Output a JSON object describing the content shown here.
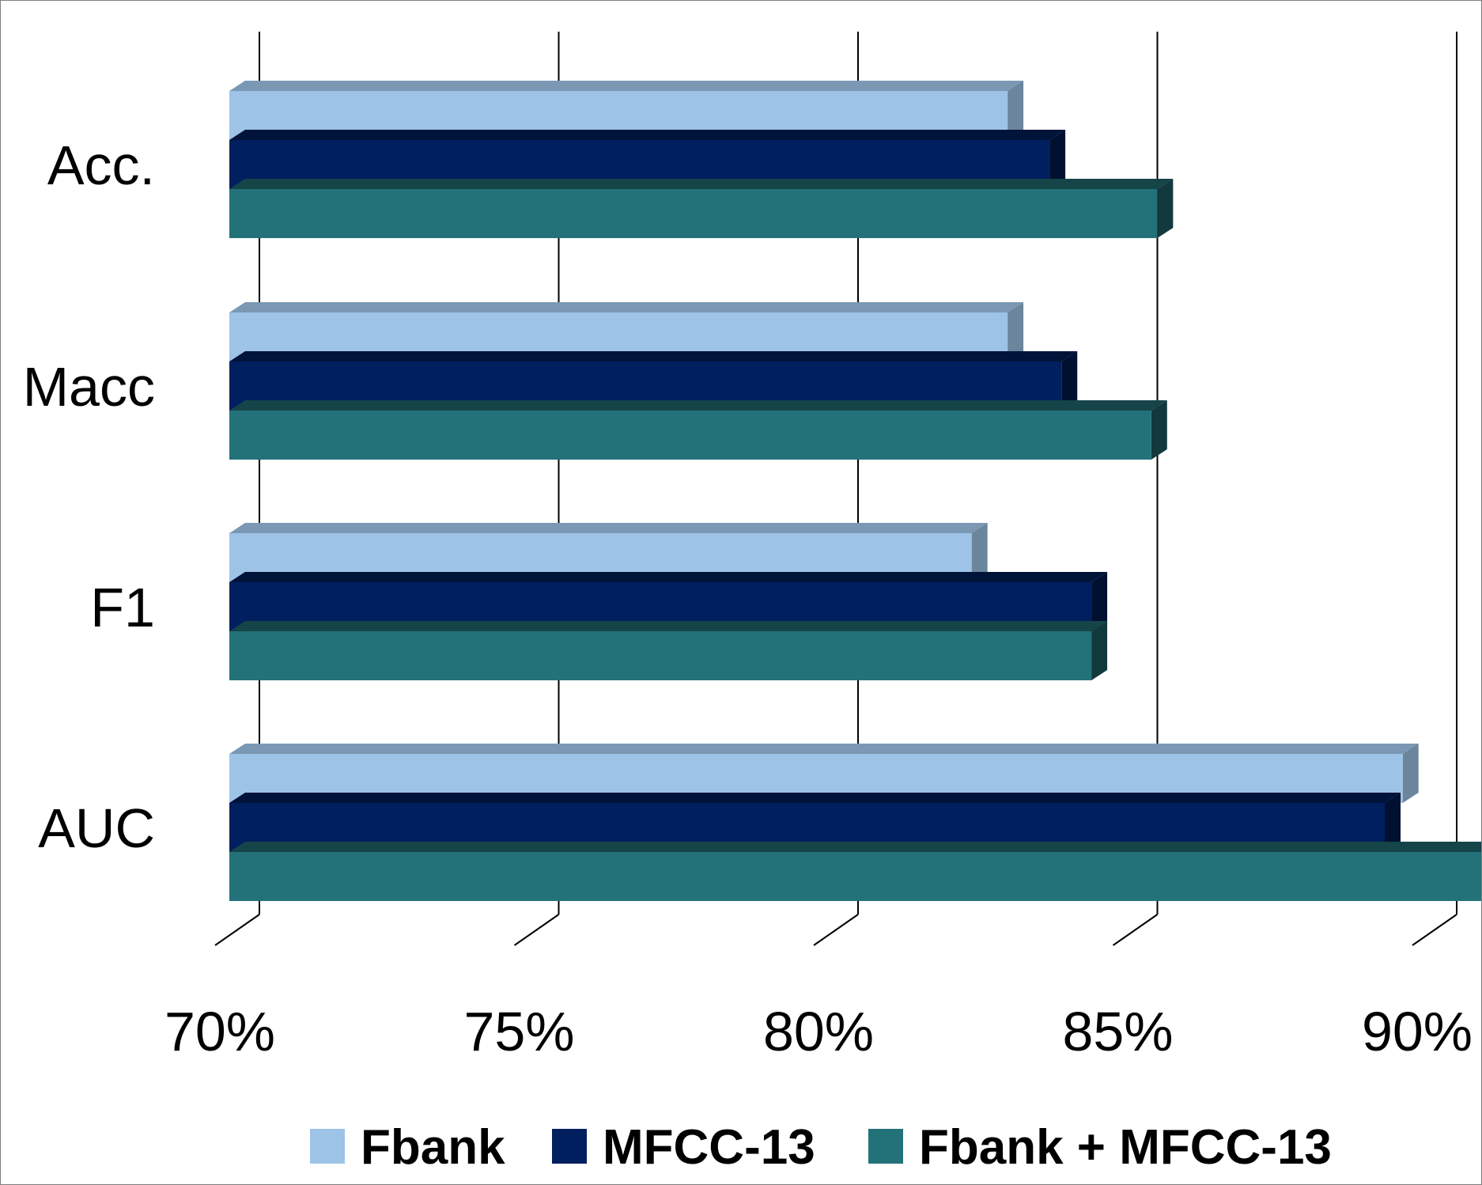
{
  "chart_data": {
    "type": "bar",
    "orientation": "horizontal",
    "style": "3d-clustered",
    "categories": [
      "Acc.",
      "Macc",
      "F1",
      "AUC"
    ],
    "series": [
      {
        "name": "Fbank",
        "color": "#9dc3e6",
        "values": [
          83.0,
          83.0,
          82.4,
          89.6
        ]
      },
      {
        "name": "MFCC-13",
        "color": "#001f5f",
        "values": [
          83.7,
          83.9,
          84.4,
          89.3
        ]
      },
      {
        "name": "Fbank + MFCC-13",
        "color": "#23727a",
        "values": [
          85.5,
          85.4,
          84.4,
          91.6
        ]
      }
    ],
    "xlim": [
      70,
      90
    ],
    "x_ticks": [
      70,
      75,
      80,
      85,
      90
    ],
    "x_tick_labels": [
      "70%",
      "75%",
      "80%",
      "85%",
      "90%"
    ],
    "grid": "vertical",
    "legend_position": "bottom",
    "title": "",
    "xlabel": "",
    "ylabel": ""
  }
}
